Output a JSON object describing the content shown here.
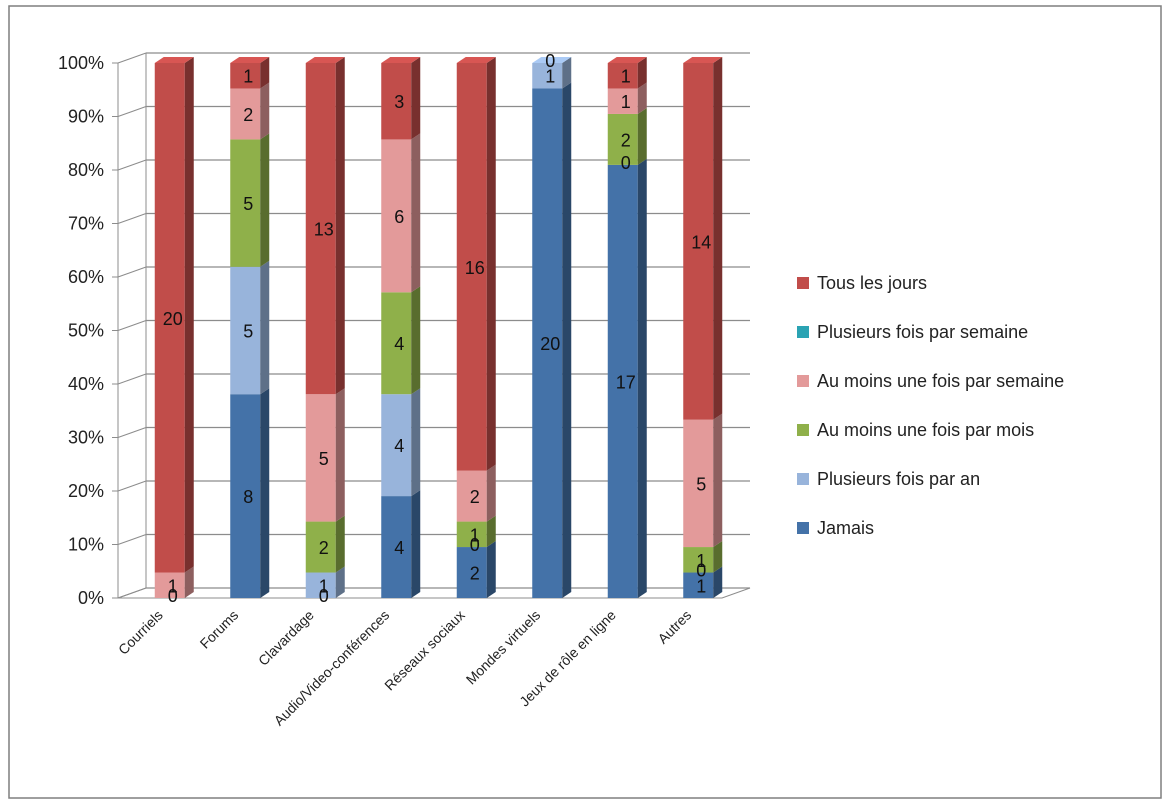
{
  "chart_data": {
    "type": "bar",
    "stacked": "percent",
    "categories": [
      "Courriels",
      "Forums",
      "Clavardage",
      "Audio/Video-conférences",
      "Réseaux sociaux",
      "Mondes virtuels",
      "Jeux de rôle en ligne",
      "Autres"
    ],
    "series": [
      {
        "name": "Jamais",
        "color": "#4472a8",
        "values": [
          0,
          8,
          0,
          4,
          2,
          20,
          17,
          1
        ]
      },
      {
        "name": "Plusieurs fois par an",
        "color": "#98b4db",
        "values": [
          0,
          5,
          1,
          4,
          0,
          1,
          0,
          0
        ]
      },
      {
        "name": "Au moins une fois par mois",
        "color": "#8fb04a",
        "values": [
          0,
          5,
          2,
          4,
          1,
          0,
          2,
          1
        ]
      },
      {
        "name": "Au moins une fois par semaine",
        "color": "#e39a9a",
        "values": [
          1,
          2,
          5,
          6,
          2,
          0,
          1,
          5
        ]
      },
      {
        "name": "Plusieurs fois par semaine",
        "color": "#2aa3b3",
        "values": [
          0,
          0,
          0,
          0,
          0,
          0,
          0,
          0
        ]
      },
      {
        "name": "Tous les jours",
        "color": "#c14d4a",
        "values": [
          20,
          1,
          13,
          3,
          16,
          0,
          1,
          14
        ]
      }
    ],
    "data_labels": [
      [
        [
          "0",
          "1",
          "20"
        ]
      ],
      [
        [
          "8",
          "5",
          "5",
          "2",
          "1"
        ]
      ],
      [
        [
          "0",
          "1",
          "2",
          "5",
          "13"
        ]
      ],
      [
        [
          "4",
          "4",
          "4",
          "6",
          "3"
        ]
      ],
      [
        [
          "2",
          "0",
          "1",
          "2",
          "16"
        ]
      ],
      [
        [
          "20",
          "1",
          "0"
        ]
      ],
      [
        [
          "17",
          "0",
          "2",
          "1",
          "1"
        ]
      ],
      [
        [
          "1",
          "0",
          "1",
          "5",
          "14"
        ]
      ]
    ],
    "y_ticks": [
      "0%",
      "10%",
      "20%",
      "30%",
      "40%",
      "50%",
      "60%",
      "70%",
      "80%",
      "90%",
      "100%"
    ],
    "ylim": [
      0,
      100
    ],
    "grid": true,
    "legend_position": "right",
    "legend_order": [
      "Tous les jours",
      "Plusieurs fois par semaine",
      "Au moins une fois par semaine",
      "Au moins une fois par mois",
      "Plusieurs fois par an",
      "Jamais"
    ],
    "title": "",
    "xlabel": "",
    "ylabel": ""
  }
}
